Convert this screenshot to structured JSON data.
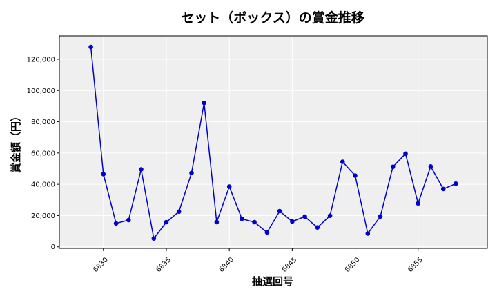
{
  "chart_data": {
    "type": "line",
    "title": "セット（ボックス）の賞金推移",
    "xlabel": "抽選回号",
    "ylabel": "賞金額（円）",
    "x": [
      6829,
      6830,
      6831,
      6832,
      6833,
      6834,
      6835,
      6836,
      6837,
      6838,
      6839,
      6840,
      6841,
      6842,
      6843,
      6844,
      6845,
      6846,
      6847,
      6848,
      6849,
      6850,
      6851,
      6852,
      6853,
      6854,
      6855,
      6856,
      6857,
      6858
    ],
    "series": [
      {
        "values": [
          127900,
          46500,
          15000,
          17100,
          49500,
          5300,
          15800,
          22500,
          47200,
          92100,
          15800,
          38500,
          17900,
          15800,
          9200,
          22800,
          16200,
          19300,
          12400,
          19900,
          54400,
          45600,
          8500,
          19400,
          51200,
          59600,
          27800,
          51400,
          37000,
          40400
        ],
        "color": "#0000cc"
      }
    ],
    "xlim": [
      6826.5,
      6860.5
    ],
    "ylim": [
      -1000,
      135000
    ],
    "xticks": [
      6830,
      6835,
      6840,
      6845,
      6850,
      6855
    ],
    "yticks": [
      0,
      20000,
      40000,
      60000,
      80000,
      100000,
      120000
    ],
    "ytick_labels": [
      "0",
      "20,000",
      "40,000",
      "60,000",
      "80,000",
      "100,000",
      "120,000"
    ],
    "grid": true,
    "plot_background": "#efefef"
  }
}
